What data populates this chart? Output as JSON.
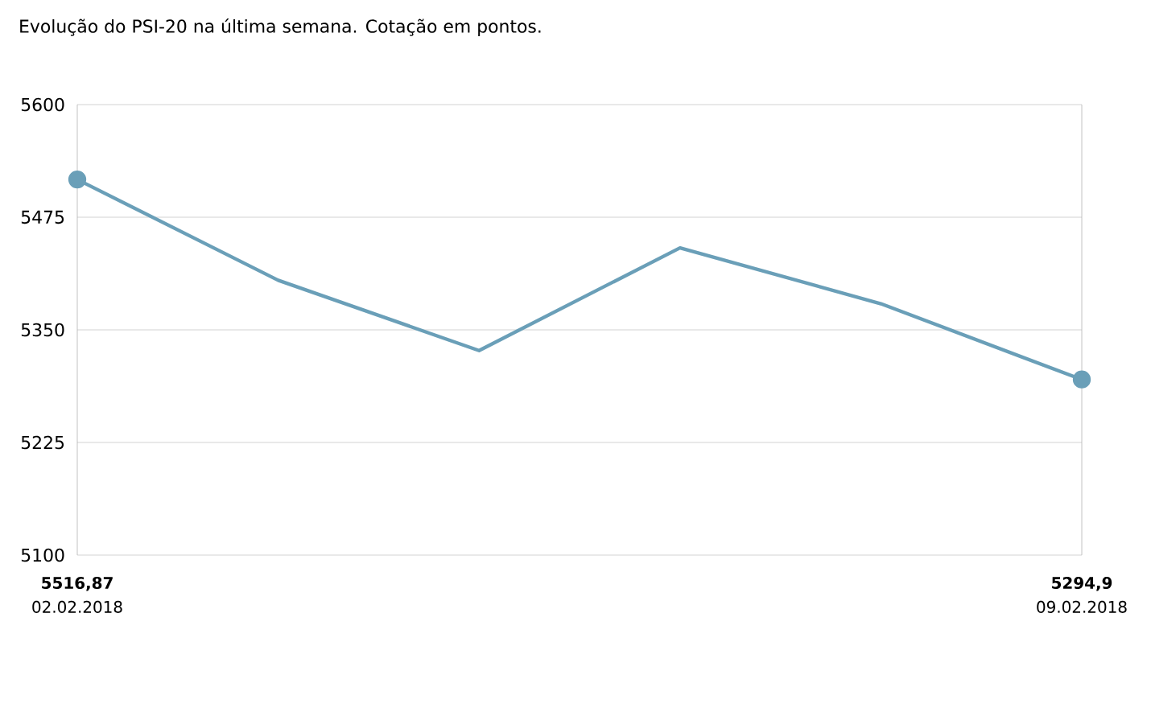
{
  "chart_data": {
    "type": "line",
    "title": "Evolução do PSI-20 na última semana. Cotação em pontos.",
    "categories": [
      "02.02.2018",
      null,
      null,
      null,
      null,
      "09.02.2018"
    ],
    "values": [
      5516.87,
      5405,
      5327,
      5441,
      5379,
      5294.9
    ],
    "value_labels": [
      "5516,87",
      null,
      null,
      null,
      null,
      "5294,9"
    ],
    "color": "#6a9fb8",
    "ylim": [
      5100,
      5600
    ],
    "yticks": [
      5100,
      5225,
      5350,
      5475,
      5600
    ],
    "grid": "y",
    "line_style": "solid"
  }
}
